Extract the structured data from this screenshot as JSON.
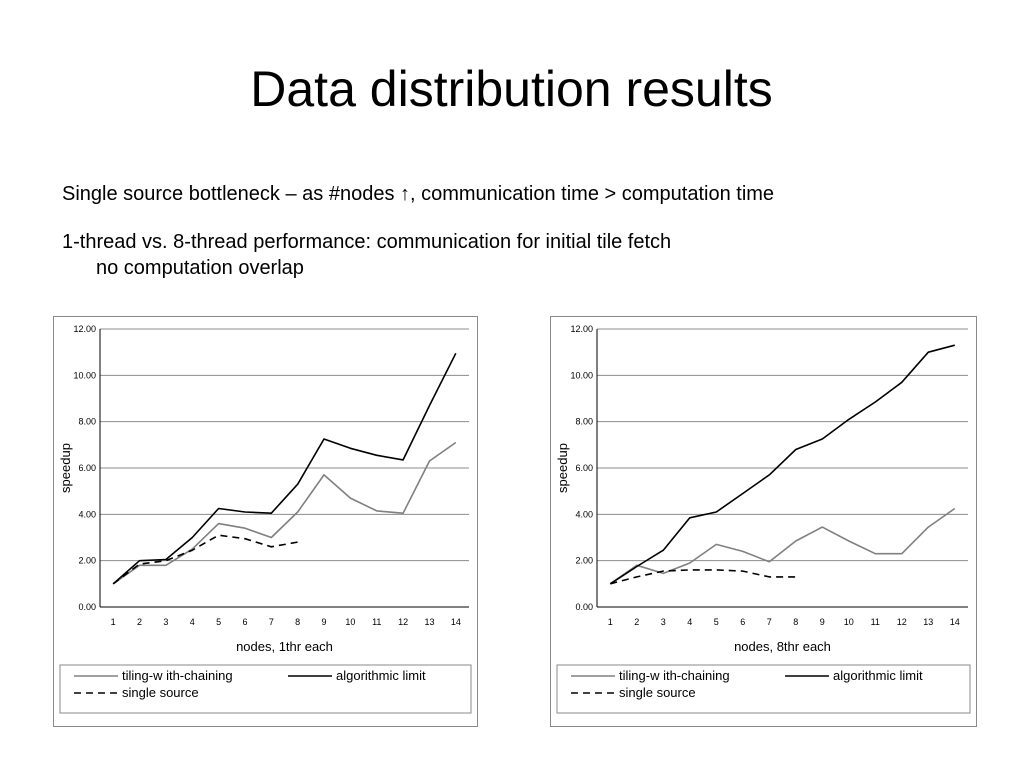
{
  "slide": {
    "title": "Data distribution results",
    "bullet1": "Single source bottleneck – as #nodes ↑, communication time > computation time",
    "bullet2_line1": "1-thread vs. 8-thread performance: communication for initial tile fetch",
    "bullet2_line2": "no computation overlap"
  },
  "chart_data": [
    {
      "type": "line",
      "xlabel": "nodes, 1thr each",
      "ylabel": "speedup",
      "ylim": [
        0,
        12
      ],
      "yticks": [
        "0.00",
        "2.00",
        "4.00",
        "6.00",
        "8.00",
        "10.00",
        "12.00"
      ],
      "categories": [
        "1",
        "2",
        "3",
        "4",
        "5",
        "6",
        "7",
        "8",
        "9",
        "10",
        "11",
        "12",
        "13",
        "14"
      ],
      "grid": "horizontal",
      "legend": "bottom",
      "series": [
        {
          "name": "tiling-w ith-chaining",
          "color": "#808080",
          "dash": "solid",
          "values": [
            1.0,
            1.8,
            1.8,
            2.5,
            3.6,
            3.4,
            3.0,
            4.1,
            5.7,
            4.7,
            4.15,
            4.05,
            6.3,
            7.1
          ]
        },
        {
          "name": "algorithmic limit",
          "color": "#000000",
          "dash": "solid",
          "values": [
            1.0,
            2.0,
            2.05,
            3.0,
            4.25,
            4.1,
            4.05,
            5.3,
            7.25,
            6.85,
            6.55,
            6.35,
            8.7,
            10.95
          ]
        },
        {
          "name": "single source",
          "color": "#000000",
          "dash": "dashed",
          "values": [
            1.0,
            1.85,
            2.0,
            2.45,
            3.1,
            2.95,
            2.6,
            2.8,
            null,
            null,
            null,
            null,
            null,
            null
          ]
        }
      ]
    },
    {
      "type": "line",
      "xlabel": "nodes, 8thr each",
      "ylabel": "speedup",
      "ylim": [
        0,
        12
      ],
      "yticks": [
        "0.00",
        "2.00",
        "4.00",
        "6.00",
        "8.00",
        "10.00",
        "12.00"
      ],
      "categories": [
        "1",
        "2",
        "3",
        "4",
        "5",
        "6",
        "7",
        "8",
        "9",
        "10",
        "11",
        "12",
        "13",
        "14"
      ],
      "grid": "horizontal",
      "legend": "bottom",
      "series": [
        {
          "name": "tiling-w ith-chaining",
          "color": "#808080",
          "dash": "solid",
          "values": [
            1.0,
            1.8,
            1.45,
            1.9,
            2.7,
            2.4,
            1.95,
            2.85,
            3.45,
            2.85,
            2.3,
            2.3,
            3.45,
            4.25
          ]
        },
        {
          "name": "algorithmic limit",
          "color": "#000000",
          "dash": "solid",
          "values": [
            1.0,
            1.75,
            2.45,
            3.85,
            4.1,
            4.9,
            5.7,
            6.8,
            7.25,
            8.1,
            8.85,
            9.7,
            11.0,
            11.3
          ]
        },
        {
          "name": "single source",
          "color": "#000000",
          "dash": "dashed",
          "values": [
            1.0,
            1.3,
            1.55,
            1.6,
            1.6,
            1.55,
            1.3,
            1.3,
            null,
            null,
            null,
            null,
            null,
            null
          ]
        }
      ]
    }
  ]
}
